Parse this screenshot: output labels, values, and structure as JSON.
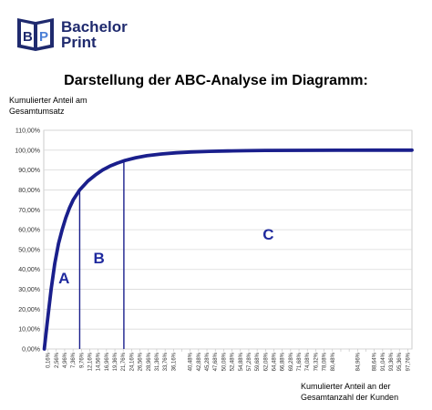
{
  "logo": {
    "line1": "Bachelor",
    "line2": "Print",
    "icon": "book-bp-logo-icon"
  },
  "chart_data": {
    "type": "line",
    "title": "Darstellung der ABC-Analyse im Diagramm:",
    "ylabel": "Kumulierter Anteil am Gesamtumsatz",
    "xlabel": "Kumulierter Anteil an der Gesamtanzahl der Kunden",
    "ylim": [
      0,
      110
    ],
    "yticks": [
      "0,00%",
      "10,00%",
      "20,00%",
      "30,00%",
      "40,00%",
      "50,00%",
      "60,00%",
      "70,00%",
      "80,00%",
      "90,00%",
      "100,00%",
      "110,00%"
    ],
    "xticks": [
      "0,16%",
      "2,56%",
      "4,96%",
      "7,36%",
      "9,76%",
      "12,16%",
      "14,56%",
      "16,96%",
      "19,36%",
      "21,76%",
      "24,16%",
      "26,56%",
      "28,96%",
      "31,36%",
      "33,76%",
      "36,16%",
      "",
      "40,48%",
      "42,88%",
      "45,28%",
      "47,68%",
      "50,08%",
      "52,48%",
      "54,88%",
      "57,28%",
      "59,68%",
      "62,08%",
      "64,48%",
      "66,88%",
      "69,28%",
      "71,68%",
      "74,08%",
      "76,32%",
      "78,08%",
      "80,48%",
      "",
      "",
      "84,96%",
      "",
      "88,64%",
      "91,04%",
      "93,36%",
      "95,36%",
      "97,76%"
    ],
    "series": [
      {
        "color": "#1a1f8c",
        "x": [
          0.16,
          1,
          2,
          3,
          4,
          5,
          6,
          7,
          8,
          9.76,
          12,
          14,
          16,
          18,
          20,
          22,
          25,
          28,
          32,
          36,
          40,
          45,
          50,
          55,
          60,
          70,
          80,
          90,
          100
        ],
        "y": [
          0,
          14,
          30,
          43,
          53,
          60,
          66,
          71,
          75,
          80,
          84.5,
          87.5,
          90,
          92,
          93.5,
          94.8,
          96.2,
          97.2,
          98.1,
          98.7,
          99.1,
          99.4,
          99.6,
          99.75,
          99.85,
          99.93,
          99.97,
          100,
          100
        ]
      }
    ],
    "boundaries": [
      {
        "x": 9.76,
        "y": 80
      },
      {
        "x": 21.76,
        "y": 95
      }
    ],
    "zones": [
      {
        "label": "A",
        "x": 5.5,
        "y": 33
      },
      {
        "label": "B",
        "x": 15.0,
        "y": 43
      },
      {
        "label": "C",
        "x": 61.0,
        "y": 55
      }
    ],
    "grid": true
  }
}
